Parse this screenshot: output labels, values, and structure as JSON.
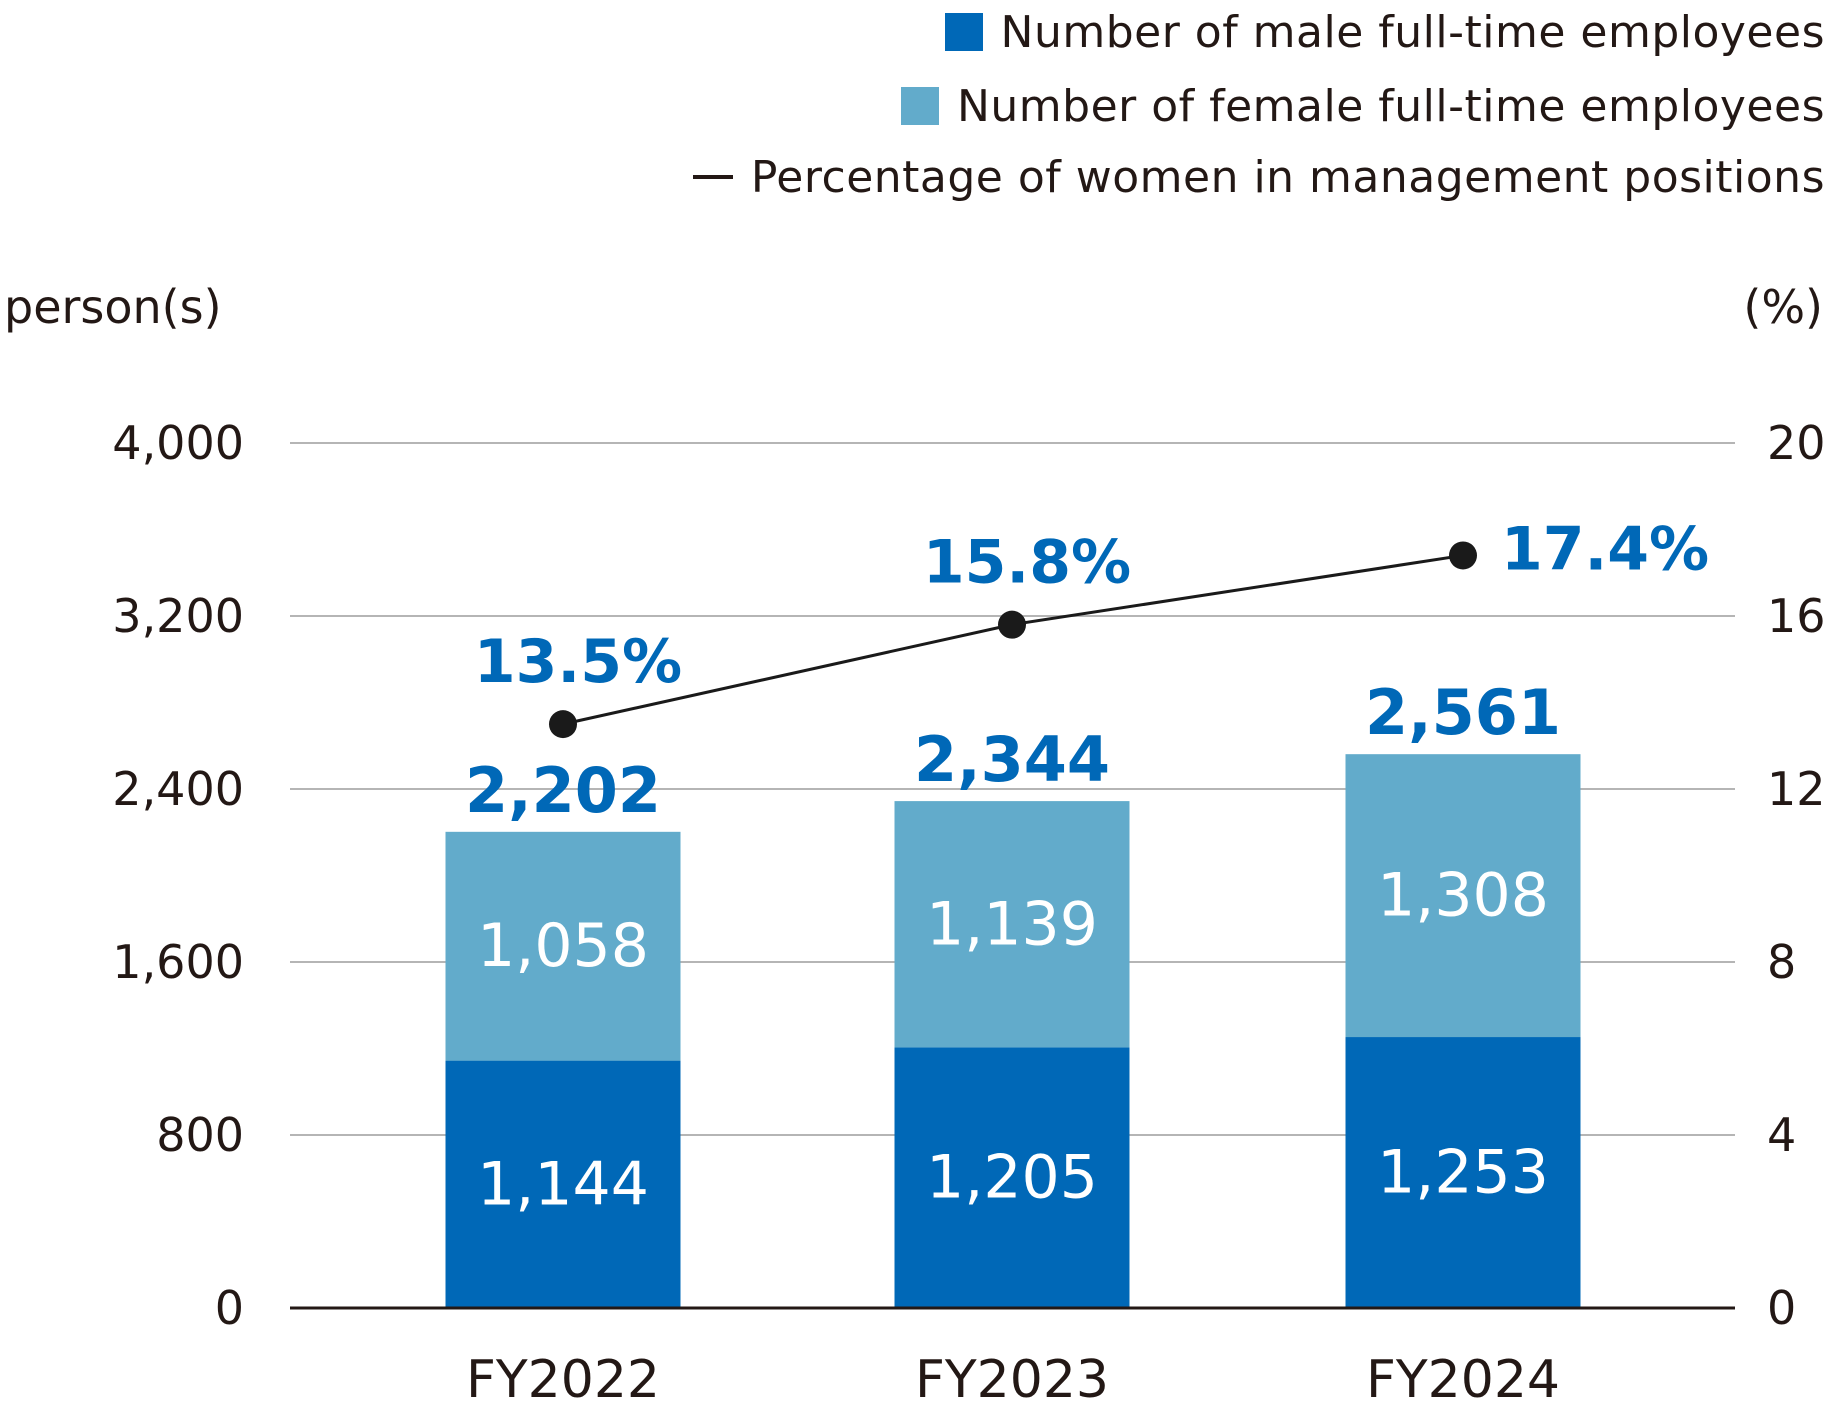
{
  "legend": {
    "male_label": "Number of male full-time employees",
    "female_label": "Number of female full-time employees",
    "line_label": "Percentage of women in management positions"
  },
  "axes": {
    "left_unit": "person(s)",
    "right_unit": "(%)"
  },
  "colors": {
    "male": "#0068b7",
    "female": "#62abcb",
    "line": "#1a1a1a",
    "label_blue": "#0068b7",
    "grid": "#b5b5b5",
    "text": "#231815"
  },
  "chart_data": {
    "type": "bar",
    "stacked": true,
    "categories": [
      "FY2022",
      "FY2023",
      "FY2024"
    ],
    "series": [
      {
        "name": "Number of male full-time employees",
        "values": [
          1144,
          1205,
          1253
        ],
        "value_labels": [
          "1,144",
          "1,205",
          "1,253"
        ]
      },
      {
        "name": "Number of female full-time employees",
        "values": [
          1058,
          1139,
          1308
        ],
        "value_labels": [
          "1,058",
          "1,139",
          "1,308"
        ]
      }
    ],
    "totals": [
      2202,
      2344,
      2561
    ],
    "total_labels": [
      "2,202",
      "2,344",
      "2,561"
    ],
    "line_series": {
      "name": "Percentage of women in management positions",
      "axis": "right",
      "values": [
        13.5,
        15.8,
        17.4
      ],
      "value_labels": [
        "13.5%",
        "15.8%",
        "17.4%"
      ]
    },
    "left_axis": {
      "ylim": [
        0,
        4000
      ],
      "ticks": [
        0,
        800,
        1600,
        2400,
        3200,
        4000
      ],
      "tick_labels": [
        "0",
        "800",
        "1,600",
        "2,400",
        "3,200",
        "4,000"
      ]
    },
    "right_axis": {
      "ylim": [
        0,
        20
      ],
      "ticks": [
        0,
        4,
        8,
        12,
        16,
        20
      ],
      "tick_labels": [
        "0",
        "4",
        "8",
        "12",
        "16",
        "20"
      ]
    },
    "grid": true,
    "legend_position": "top-right"
  }
}
